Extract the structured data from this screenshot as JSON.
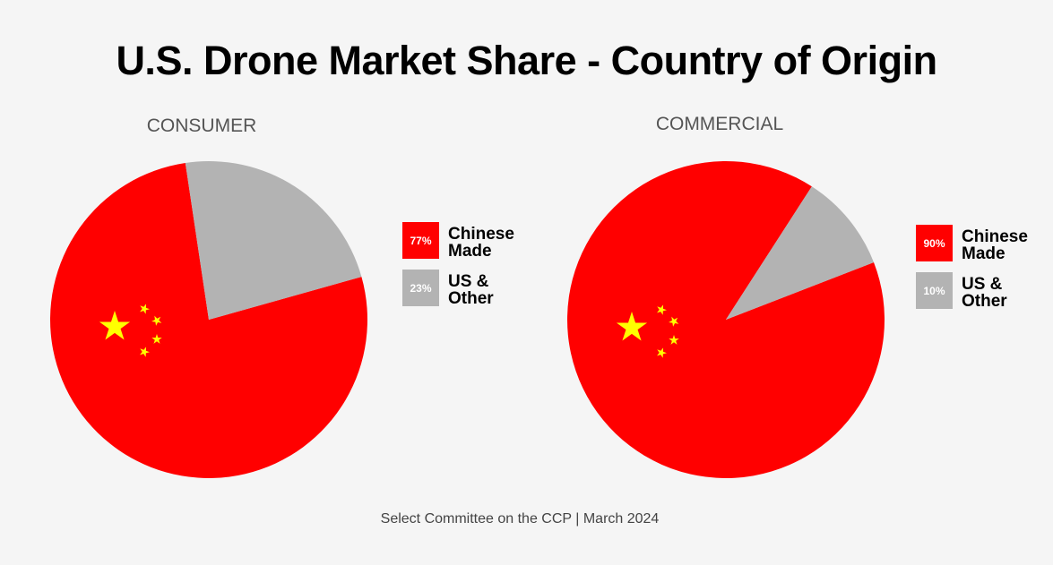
{
  "title": "U.S. Drone Market Share - Country of Origin",
  "source": "Select Committee on the CCP | March 2024",
  "colors": {
    "chinese": "#ff0000",
    "other": "#b3b3b3",
    "star": "#ffff00",
    "subtitle": "#555555"
  },
  "icons": [
    "star-icon"
  ],
  "chart_data": [
    {
      "type": "pie",
      "title": "CONSUMER",
      "categories": [
        "Chinese Made",
        "US & Other"
      ],
      "values": [
        77,
        23
      ],
      "value_labels": [
        "77%",
        "23%"
      ],
      "legend_lines": [
        [
          "Chinese",
          "Made"
        ],
        [
          "US &",
          "Other"
        ]
      ],
      "legend_position": "right"
    },
    {
      "type": "pie",
      "title": "COMMERCIAL",
      "categories": [
        "Chinese Made",
        "US & Other"
      ],
      "values": [
        90,
        10
      ],
      "value_labels": [
        "90%",
        "10%"
      ],
      "legend_lines": [
        [
          "Chinese",
          "Made"
        ],
        [
          "US &",
          "Other"
        ]
      ],
      "legend_position": "right"
    }
  ]
}
